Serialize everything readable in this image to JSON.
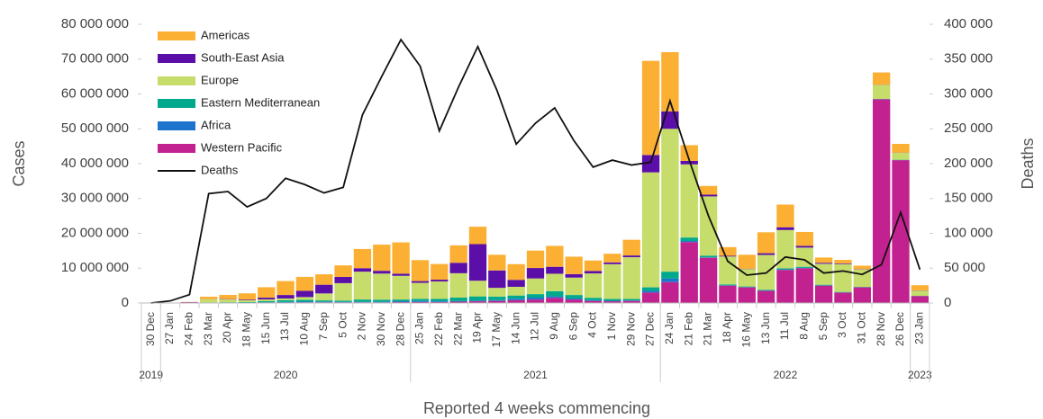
{
  "chart_data": {
    "type": "bar",
    "stacked": true,
    "y_label": "Cases",
    "y2_label": "Deaths",
    "x_label": "Reported 4 weeks commencing",
    "categories": [
      "30 Dec",
      "27 Jan",
      "24 Feb",
      "23 Mar",
      "20 Apr",
      "18 May",
      "15 Jun",
      "13 Jul",
      "10 Aug",
      "7 Sep",
      "5 Oct",
      "2 Nov",
      "30 Nov",
      "28 Dec",
      "25 Jan",
      "22 Feb",
      "22 Mar",
      "19 Apr",
      "17 May",
      "14 Jun",
      "12 Jul",
      "9 Aug",
      "6 Sep",
      "4 Oct",
      "1 Nov",
      "29 Nov",
      "27 Dec",
      "24 Jan",
      "21 Feb",
      "21 Mar",
      "18 Apr",
      "16 May",
      "13 Jun",
      "11 Jul",
      "8 Aug",
      "5 Sep",
      "3 Oct",
      "31 Oct",
      "28 Nov",
      "26 Dec",
      "23 Jan"
    ],
    "x_groups": [
      {
        "label": "2019",
        "count": 1
      },
      {
        "label": "2020",
        "count": 13
      },
      {
        "label": "2021",
        "count": 13
      },
      {
        "label": "2022",
        "count": 13
      },
      {
        "label": "2023",
        "count": 1
      }
    ],
    "series": [
      {
        "name": "Americas",
        "color": "#fbb034",
        "values": [
          0,
          0,
          30000,
          700000,
          1200000,
          1800000,
          3000000,
          4000000,
          4000000,
          3000000,
          3300000,
          5500000,
          7500000,
          9000000,
          6000000,
          4500000,
          5000000,
          5000000,
          4500000,
          4500000,
          5000000,
          6000000,
          5000000,
          3000000,
          2500000,
          4500000,
          27000000,
          17000000,
          4500000,
          2500000,
          2500000,
          4000000,
          6000000,
          6500000,
          4000000,
          1500000,
          1000000,
          1000000,
          3500000,
          2500000,
          1500000
        ]
      },
      {
        "name": "South-East Asia",
        "color": "#5c0fa8",
        "values": [
          0,
          0,
          0,
          30000,
          100000,
          200000,
          500000,
          1000000,
          1800000,
          2500000,
          1800000,
          1000000,
          800000,
          600000,
          500000,
          500000,
          3000000,
          10500000,
          5000000,
          2000000,
          3000000,
          2000000,
          1000000,
          700000,
          500000,
          500000,
          5000000,
          5000000,
          1000000,
          500000,
          200000,
          100000,
          500000,
          800000,
          500000,
          300000,
          200000,
          100000,
          50000,
          50000,
          50000
        ]
      },
      {
        "name": "Europe",
        "color": "#c6dc6b",
        "values": [
          0,
          0,
          40000,
          900000,
          800000,
          500000,
          500000,
          500000,
          800000,
          2000000,
          5000000,
          8000000,
          7500000,
          6800000,
          4600000,
          5000000,
          7000000,
          4500000,
          2500000,
          2500000,
          4500000,
          5000000,
          5000000,
          7000000,
          10000000,
          12000000,
          33000000,
          41000000,
          21000000,
          17000000,
          8000000,
          5000000,
          10000000,
          11000000,
          5500000,
          6000000,
          8000000,
          5000000,
          4000000,
          2000000,
          1500000
        ]
      },
      {
        "name": "Eastern Mediterranean",
        "color": "#00a88c",
        "values": [
          0,
          0,
          10000,
          60000,
          100000,
          150000,
          300000,
          500000,
          500000,
          400000,
          400000,
          700000,
          600000,
          500000,
          600000,
          700000,
          1000000,
          1200000,
          1000000,
          900000,
          1000000,
          1500000,
          1000000,
          700000,
          500000,
          400000,
          1000000,
          2000000,
          1000000,
          500000,
          300000,
          200000,
          200000,
          300000,
          300000,
          200000,
          150000,
          100000,
          100000,
          100000,
          50000
        ]
      },
      {
        "name": "Africa",
        "color": "#1d74cc",
        "values": [
          0,
          0,
          0,
          10000,
          20000,
          30000,
          80000,
          150000,
          200000,
          150000,
          100000,
          100000,
          150000,
          250000,
          300000,
          200000,
          150000,
          200000,
          250000,
          450000,
          550000,
          400000,
          300000,
          200000,
          150000,
          150000,
          500000,
          1000000,
          300000,
          100000,
          50000,
          50000,
          100000,
          150000,
          100000,
          50000,
          30000,
          20000,
          20000,
          20000,
          10000
        ]
      },
      {
        "name": "Western Pacific",
        "color": "#c2228f",
        "values": [
          10000,
          70000,
          250000,
          100000,
          100000,
          100000,
          150000,
          150000,
          200000,
          200000,
          200000,
          200000,
          200000,
          250000,
          300000,
          300000,
          400000,
          500000,
          600000,
          800000,
          1000000,
          1500000,
          1000000,
          600000,
          500000,
          600000,
          3000000,
          6000000,
          17500000,
          13000000,
          5000000,
          4500000,
          3500000,
          9500000,
          10000000,
          5000000,
          3000000,
          4500000,
          58500000,
          41000000,
          2000000
        ]
      },
      {
        "name": "Deaths",
        "color": "#111111",
        "type": "line",
        "axis": "y2",
        "values": [
          0,
          3000,
          12000,
          157000,
          160000,
          138000,
          150000,
          179000,
          170000,
          158000,
          166000,
          270000,
          325000,
          378000,
          340000,
          247000,
          310000,
          368000,
          305000,
          228000,
          258000,
          280000,
          233000,
          195000,
          205000,
          198000,
          202000,
          290000,
          205000,
          125000,
          60000,
          40000,
          43000,
          66000,
          62000,
          43000,
          46000,
          41000,
          55000,
          130000,
          48000
        ]
      }
    ],
    "ylim": [
      0,
      80000000
    ],
    "yticks": [
      0,
      {
        "value": 10000000,
        "label": "10 000 000"
      },
      {
        "value": 20000000,
        "label": "20 000 000"
      },
      {
        "value": 30000000,
        "label": "30 000 000"
      },
      {
        "value": 40000000,
        "label": "40 000 000"
      },
      {
        "value": 50000000,
        "label": "50 000 000"
      },
      {
        "value": 60000000,
        "label": "60 000 000"
      },
      {
        "value": 70000000,
        "label": "70 000 000"
      },
      {
        "value": 80000000,
        "label": "80 000 000"
      }
    ],
    "y2lim": [
      0,
      400000
    ],
    "y2ticks": [
      0,
      {
        "value": 50000,
        "label": "50 000"
      },
      {
        "value": 100000,
        "label": "100 000"
      },
      {
        "value": 150000,
        "label": "150 000"
      },
      {
        "value": 200000,
        "label": "200 000"
      },
      {
        "value": 250000,
        "label": "250 000"
      },
      {
        "value": 300000,
        "label": "300 000"
      },
      {
        "value": 350000,
        "label": "350 000"
      },
      {
        "value": 400000,
        "label": "400 000"
      }
    ],
    "legend": "upper-left"
  }
}
